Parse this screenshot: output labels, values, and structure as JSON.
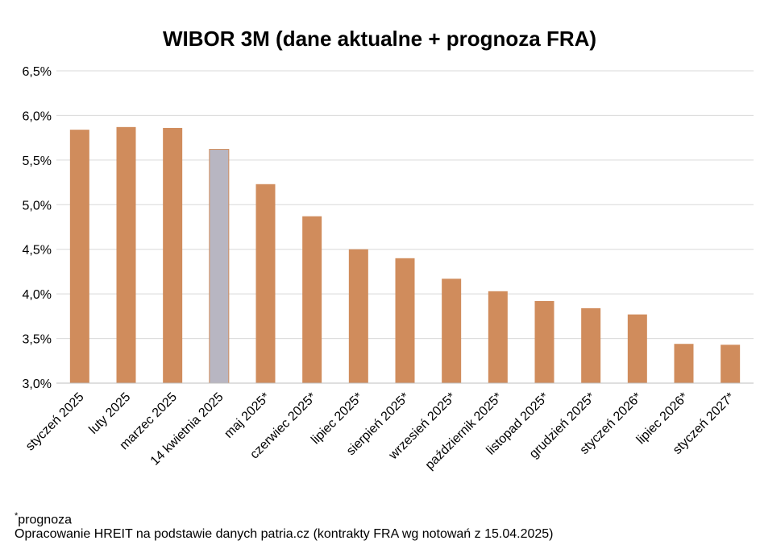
{
  "chart_data": {
    "type": "bar",
    "title": "WIBOR 3M (dane aktualne + prognoza FRA)",
    "categories": [
      "styczeń 2025",
      "luty 2025",
      "marzec 2025",
      "14 kwietnia 2025",
      "maj 2025*",
      "czerwiec 2025*",
      "lipiec 2025*",
      "sierpień 2025*",
      "wrzesień 2025*",
      "październik 2025*",
      "listopad 2025*",
      "grudzień 2025*",
      "styczeń 2026*",
      "lipiec 2026*",
      "styczeń 2027*"
    ],
    "values": [
      5.84,
      5.87,
      5.86,
      5.62,
      5.23,
      4.87,
      4.5,
      4.4,
      4.17,
      4.03,
      3.92,
      3.84,
      3.77,
      3.44,
      3.43
    ],
    "highlight_index": 3,
    "ylim": [
      3.0,
      6.5
    ],
    "yticks": [
      "3,0%",
      "3,5%",
      "4,0%",
      "4,5%",
      "5,0%",
      "5,5%",
      "6,0%",
      "6,5%"
    ],
    "ytick_values": [
      3.0,
      3.5,
      4.0,
      4.5,
      5.0,
      5.5,
      6.0,
      6.5
    ],
    "grid": true,
    "colors": {
      "bar": "#d08c5c",
      "highlight": "#b8b6c2",
      "grid": "#d9d9d9",
      "axis": "#bfbfbf"
    }
  },
  "footnote": {
    "asterisk": "*",
    "forecast": "prognoza",
    "source": "Opracowanie HREIT na podstawie danych patria.cz (kontrakty FRA wg notowań z 15.04.2025)"
  }
}
